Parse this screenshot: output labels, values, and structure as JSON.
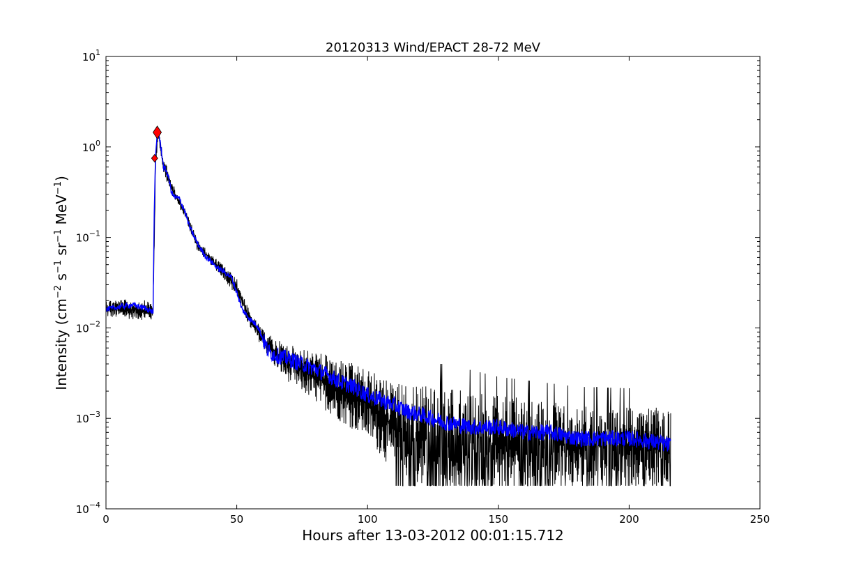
{
  "chart_data": {
    "type": "line",
    "title": "20120313 Wind/EPACT 28-72 MeV",
    "xlabel": "Hours after 13-03-2012 00:01:15.712",
    "ylabel": "Intensity (cm⁻² s⁻¹ sr⁻¹ MeV⁻¹)",
    "xlim": [
      0,
      250
    ],
    "ylim": [
      0.0001,
      10
    ],
    "yscale": "log",
    "grid": false,
    "x_ticks": [
      0,
      50,
      100,
      150,
      200,
      250
    ],
    "x_tick_labels": [
      "0",
      "50",
      "100",
      "150",
      "200",
      "250"
    ],
    "y_ticks": [
      0.0001,
      0.001,
      0.01,
      0.1,
      1,
      10
    ],
    "y_tick_labels": [
      {
        "base": "10",
        "exp": "-4"
      },
      {
        "base": "10",
        "exp": "-3"
      },
      {
        "base": "10",
        "exp": "-2"
      },
      {
        "base": "10",
        "exp": "-1"
      },
      {
        "base": "10",
        "exp": "0"
      },
      {
        "base": "10",
        "exp": "1"
      }
    ],
    "series": [
      {
        "color": "#000000",
        "style": "noisy raw data (fine-resolution)",
        "x_range": [
          0,
          216
        ],
        "floor": 0.00018,
        "envelope_upper": [
          [
            0,
            0.021
          ],
          [
            18,
            0.02
          ],
          [
            19,
            0.9
          ],
          [
            20,
            1.6
          ],
          [
            22,
            0.8
          ],
          [
            25,
            0.42
          ],
          [
            30,
            0.22
          ],
          [
            35,
            0.095
          ],
          [
            40,
            0.065
          ],
          [
            45,
            0.05
          ],
          [
            50,
            0.035
          ],
          [
            55,
            0.015
          ],
          [
            60,
            0.0095
          ],
          [
            65,
            0.0075
          ],
          [
            70,
            0.0065
          ],
          [
            80,
            0.0055
          ],
          [
            90,
            0.0045
          ],
          [
            100,
            0.0035
          ],
          [
            110,
            0.0025
          ],
          [
            130,
            0.0025
          ],
          [
            150,
            0.0018
          ],
          [
            180,
            0.0014
          ],
          [
            216,
            0.0013
          ]
        ],
        "envelope_lower": [
          [
            0,
            0.013
          ],
          [
            18,
            0.012
          ],
          [
            19,
            0.6
          ],
          [
            20,
            1.3
          ],
          [
            22,
            0.5
          ],
          [
            25,
            0.3
          ],
          [
            30,
            0.17
          ],
          [
            35,
            0.07
          ],
          [
            40,
            0.05
          ],
          [
            45,
            0.035
          ],
          [
            50,
            0.022
          ],
          [
            55,
            0.01
          ],
          [
            60,
            0.006
          ],
          [
            65,
            0.0035
          ],
          [
            70,
            0.0025
          ],
          [
            80,
            0.0015
          ],
          [
            90,
            0.0009
          ],
          [
            100,
            0.0006
          ],
          [
            114,
            0.00018
          ],
          [
            216,
            0.00018
          ]
        ]
      },
      {
        "color": "#0000ff",
        "style": "smoothed",
        "x": [
          0,
          5,
          10,
          15,
          18,
          18.5,
          19,
          19.5,
          20,
          21,
          22,
          23,
          24,
          25,
          26,
          28,
          30,
          32,
          35,
          38,
          40,
          43,
          45,
          48,
          50,
          52,
          55,
          58,
          60,
          62,
          65,
          70,
          75,
          80,
          85,
          90,
          95,
          100,
          105,
          110,
          115,
          120,
          130,
          140,
          150,
          160,
          170,
          180,
          190,
          200,
          210,
          216
        ],
        "y": [
          0.016,
          0.017,
          0.018,
          0.0165,
          0.015,
          0.25,
          0.8,
          1.3,
          1.45,
          1.0,
          0.6,
          0.55,
          0.45,
          0.32,
          0.28,
          0.27,
          0.2,
          0.13,
          0.085,
          0.062,
          0.055,
          0.045,
          0.042,
          0.036,
          0.025,
          0.016,
          0.0125,
          0.0105,
          0.0075,
          0.0055,
          0.005,
          0.0045,
          0.004,
          0.0035,
          0.003,
          0.0025,
          0.0022,
          0.0018,
          0.0016,
          0.0014,
          0.0012,
          0.0011,
          0.0009,
          0.0008,
          0.0008,
          0.0007,
          0.0007,
          0.0006,
          0.0006,
          0.0006,
          0.00055,
          0.0005
        ]
      }
    ],
    "markers": [
      {
        "shape": "diamond",
        "size": "small",
        "color": "#ff0000",
        "x": 18.6,
        "y": 0.75
      },
      {
        "shape": "diamond",
        "size": "large",
        "color": "#ff0000",
        "x": 19.6,
        "y": 1.45
      }
    ]
  }
}
